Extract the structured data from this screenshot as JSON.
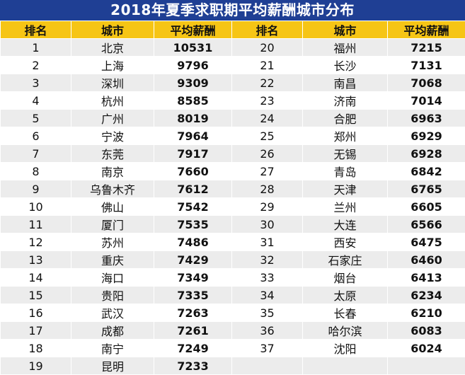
{
  "title": "2018年夏季求职期平均薪酬城市分布",
  "headers": [
    "排名",
    "城市",
    "平均薪酬",
    "排名",
    "城市",
    "平均薪酬"
  ],
  "rows": [
    {
      "l": [
        "1",
        "北京",
        "10531"
      ],
      "r": [
        "20",
        "福州",
        "7215"
      ]
    },
    {
      "l": [
        "2",
        "上海",
        "9796"
      ],
      "r": [
        "21",
        "长沙",
        "7131"
      ]
    },
    {
      "l": [
        "3",
        "深圳",
        "9309"
      ],
      "r": [
        "22",
        "南昌",
        "7068"
      ]
    },
    {
      "l": [
        "4",
        "杭州",
        "8585"
      ],
      "r": [
        "23",
        "济南",
        "7014"
      ]
    },
    {
      "l": [
        "5",
        "广州",
        "8019"
      ],
      "r": [
        "24",
        "合肥",
        "6963"
      ]
    },
    {
      "l": [
        "6",
        "宁波",
        "7964"
      ],
      "r": [
        "25",
        "郑州",
        "6929"
      ]
    },
    {
      "l": [
        "7",
        "东莞",
        "7917"
      ],
      "r": [
        "26",
        "无锡",
        "6928"
      ]
    },
    {
      "l": [
        "8",
        "南京",
        "7660"
      ],
      "r": [
        "27",
        "青岛",
        "6842"
      ]
    },
    {
      "l": [
        "9",
        "乌鲁木齐",
        "7612"
      ],
      "r": [
        "28",
        "天津",
        "6765"
      ]
    },
    {
      "l": [
        "10",
        "佛山",
        "7542"
      ],
      "r": [
        "29",
        "兰州",
        "6605"
      ]
    },
    {
      "l": [
        "11",
        "厦门",
        "7535"
      ],
      "r": [
        "30",
        "大连",
        "6566"
      ]
    },
    {
      "l": [
        "12",
        "苏州",
        "7486"
      ],
      "r": [
        "31",
        "西安",
        "6475"
      ]
    },
    {
      "l": [
        "13",
        "重庆",
        "7429"
      ],
      "r": [
        "32",
        "石家庄",
        "6460"
      ]
    },
    {
      "l": [
        "14",
        "海口",
        "7349"
      ],
      "r": [
        "33",
        "烟台",
        "6413"
      ]
    },
    {
      "l": [
        "15",
        "贵阳",
        "7335"
      ],
      "r": [
        "34",
        "太原",
        "6234"
      ]
    },
    {
      "l": [
        "16",
        "武汉",
        "7263"
      ],
      "r": [
        "35",
        "长春",
        "6210"
      ]
    },
    {
      "l": [
        "17",
        "成都",
        "7261"
      ],
      "r": [
        "36",
        "哈尔滨",
        "6083"
      ]
    },
    {
      "l": [
        "18",
        "南宁",
        "7249"
      ],
      "r": [
        "37",
        "沈阳",
        "6024"
      ]
    },
    {
      "l": [
        "19",
        "昆明",
        "7233"
      ],
      "r": [
        "",
        "",
        ""
      ]
    }
  ]
}
